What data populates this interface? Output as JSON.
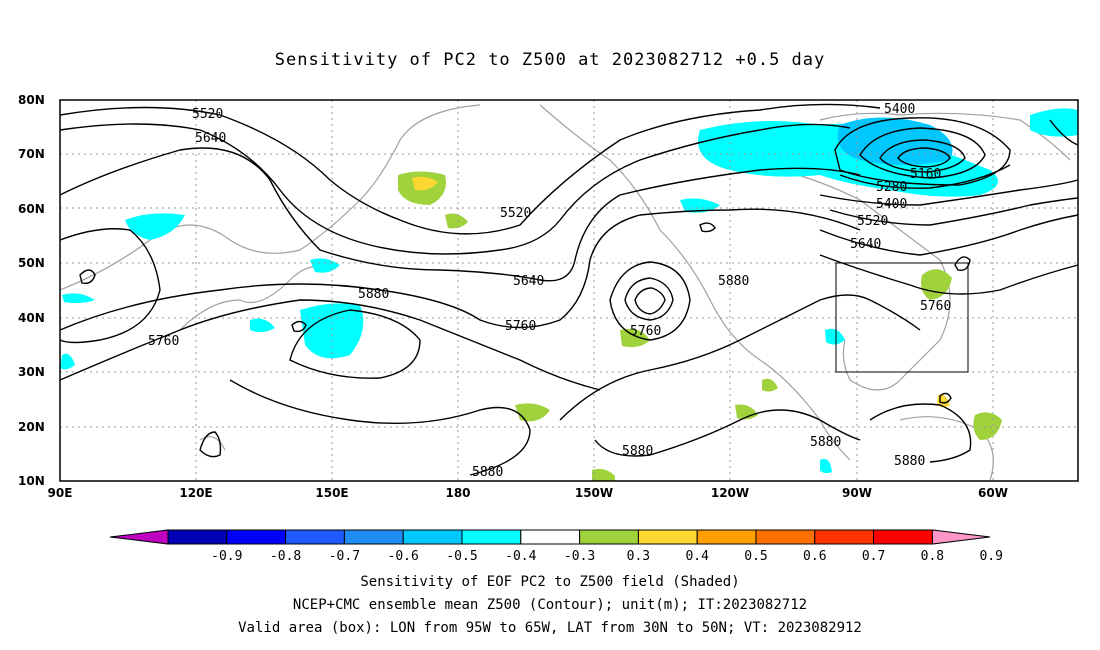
{
  "title": "Sensitivity of PC2 to Z500 at 2023082712 +0.5 day",
  "lat_labels": [
    "80N",
    "70N",
    "60N",
    "50N",
    "40N",
    "30N",
    "20N",
    "10N"
  ],
  "lon_labels": [
    "90E",
    "120E",
    "150E",
    "180",
    "150W",
    "120W",
    "90W",
    "60W"
  ],
  "contour_labels": [
    "5520",
    "5640",
    "5760",
    "5880",
    "5520",
    "5640",
    "5760",
    "5880",
    "5760",
    "5880",
    "5880",
    "5880",
    "5400",
    "5160",
    "5280",
    "5400",
    "5520",
    "5640",
    "5760",
    "5880"
  ],
  "colorbar": {
    "labels": [
      "-0.9",
      "-0.8",
      "-0.7",
      "-0.6",
      "-0.5",
      "-0.4",
      "-0.3",
      "0.3",
      "0.4",
      "0.5",
      "0.6",
      "0.7",
      "0.8",
      "0.9"
    ],
    "colors": [
      "#c000c0",
      "#0000b4",
      "#0000ff",
      "#1e5aff",
      "#1e8cf0",
      "#00c8ff",
      "#00ffff",
      "#ffffff",
      "#a0d23c",
      "#ffd732",
      "#ffa000",
      "#ff7000",
      "#ff3200",
      "#ff0000",
      "#ff96c8"
    ]
  },
  "box": {
    "lon_min": -95,
    "lon_max": -65,
    "lat_min": 30,
    "lat_max": 50
  },
  "footer": {
    "line1": "Sensitivity of EOF PC2 to Z500 field (Shaded)",
    "line2": "NCEP+CMC ensemble mean Z500 (Contour); unit(m); IT:2023082712",
    "line3": "Valid area (box): LON from 95W to 65W, LAT from 30N to 50N; VT: 2023082912"
  }
}
